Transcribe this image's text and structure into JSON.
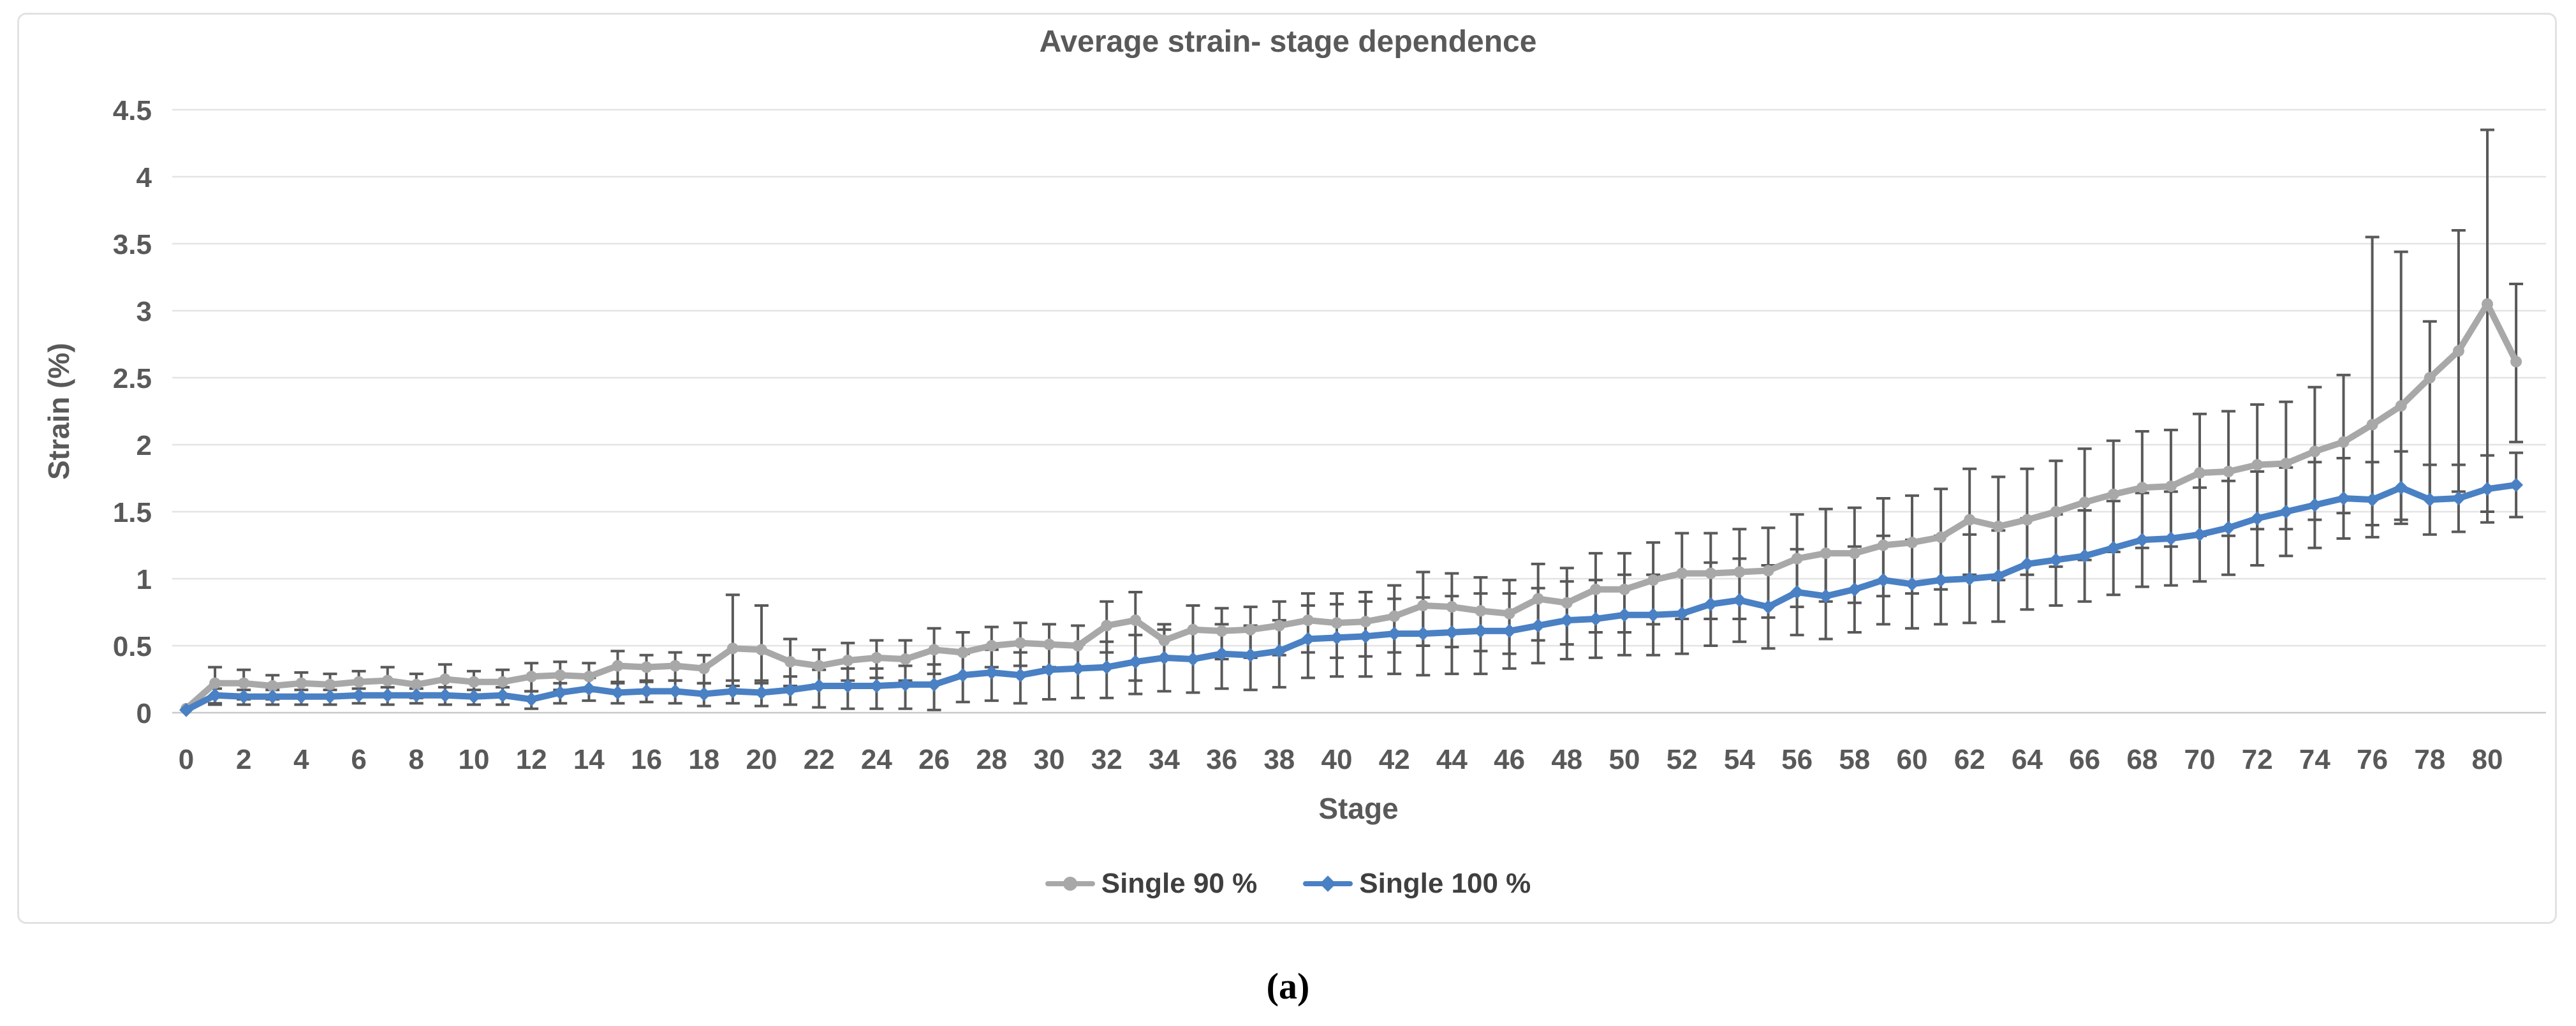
{
  "page": {
    "background": "#ffffff"
  },
  "frame": {
    "border_color": "#e2e2e2"
  },
  "caption": "(a)",
  "styles": {
    "text_color": "#595959",
    "legend_text_color": "#3f3f3f",
    "grid_color": "#e4e4e4",
    "axis_line_color": "#c9c9c9",
    "error_bar_color": "#595959"
  },
  "chart_data": {
    "type": "line",
    "title": "Average strain- stage dependence",
    "xlabel": "Stage",
    "ylabel": "Strain (%)",
    "ylim": [
      0,
      4.5
    ],
    "grid": "horizontal",
    "legend_position": "bottom",
    "yticks": [
      0,
      0.5,
      1,
      1.5,
      2,
      2.5,
      3,
      3.5,
      4,
      4.5
    ],
    "ytick_labels": [
      "0",
      "0.5",
      "1",
      "1.5",
      "2",
      "2.5",
      "3",
      "3.5",
      "4",
      "4.5"
    ],
    "xticks": [
      0,
      2,
      4,
      6,
      8,
      10,
      12,
      14,
      16,
      18,
      20,
      22,
      24,
      26,
      28,
      30,
      32,
      34,
      36,
      38,
      40,
      42,
      44,
      46,
      48,
      50,
      52,
      54,
      56,
      58,
      60,
      62,
      64,
      66,
      68,
      70,
      72,
      74,
      76,
      78,
      80
    ],
    "x": [
      0,
      1,
      2,
      3,
      4,
      5,
      6,
      7,
      8,
      9,
      10,
      11,
      12,
      13,
      14,
      15,
      16,
      17,
      18,
      19,
      20,
      21,
      22,
      23,
      24,
      25,
      26,
      27,
      28,
      29,
      30,
      31,
      32,
      33,
      34,
      35,
      36,
      37,
      38,
      39,
      40,
      41,
      42,
      43,
      44,
      45,
      46,
      47,
      48,
      49,
      50,
      51,
      52,
      53,
      54,
      55,
      56,
      57,
      58,
      59,
      60,
      61,
      62,
      63,
      64,
      65,
      66,
      67,
      68,
      69,
      70,
      71,
      72,
      73,
      74,
      75,
      76,
      77,
      78,
      79,
      80,
      81
    ],
    "error_bar_color": "#595959",
    "series": [
      {
        "name": "Single 90 %",
        "color": "#a8a8a8",
        "marker": "circle",
        "values": [
          0.03,
          0.22,
          0.22,
          0.2,
          0.22,
          0.21,
          0.23,
          0.24,
          0.21,
          0.25,
          0.23,
          0.23,
          0.27,
          0.28,
          0.27,
          0.35,
          0.34,
          0.35,
          0.33,
          0.48,
          0.47,
          0.38,
          0.35,
          0.39,
          0.41,
          0.4,
          0.47,
          0.45,
          0.5,
          0.52,
          0.51,
          0.5,
          0.65,
          0.69,
          0.54,
          0.62,
          0.61,
          0.62,
          0.65,
          0.69,
          0.67,
          0.68,
          0.72,
          0.8,
          0.79,
          0.76,
          0.74,
          0.85,
          0.82,
          0.92,
          0.92,
          0.99,
          1.04,
          1.04,
          1.05,
          1.06,
          1.15,
          1.19,
          1.19,
          1.25,
          1.27,
          1.31,
          1.44,
          1.39,
          1.44,
          1.5,
          1.57,
          1.63,
          1.68,
          1.69,
          1.79,
          1.8,
          1.85,
          1.86,
          1.95,
          2.02,
          2.15,
          2.29,
          2.5,
          2.7,
          3.05,
          2.62
        ],
        "err_plus": [
          0.02,
          0.12,
          0.1,
          0.08,
          0.08,
          0.08,
          0.08,
          0.1,
          0.08,
          0.11,
          0.08,
          0.09,
          0.1,
          0.1,
          0.1,
          0.11,
          0.09,
          0.1,
          0.1,
          0.4,
          0.33,
          0.17,
          0.12,
          0.13,
          0.13,
          0.14,
          0.16,
          0.15,
          0.14,
          0.15,
          0.15,
          0.15,
          0.18,
          0.21,
          0.12,
          0.18,
          0.17,
          0.17,
          0.18,
          0.2,
          0.22,
          0.22,
          0.23,
          0.25,
          0.25,
          0.25,
          0.25,
          0.26,
          0.26,
          0.27,
          0.27,
          0.28,
          0.3,
          0.3,
          0.32,
          0.32,
          0.33,
          0.33,
          0.34,
          0.35,
          0.35,
          0.36,
          0.38,
          0.37,
          0.38,
          0.38,
          0.4,
          0.4,
          0.42,
          0.42,
          0.44,
          0.45,
          0.45,
          0.46,
          0.48,
          0.5,
          1.4,
          1.15,
          0.42,
          0.9,
          1.3,
          0.58
        ],
        "err_minus": [
          0.02,
          0.16,
          0.12,
          0.1,
          0.1,
          0.1,
          0.1,
          0.11,
          0.1,
          0.12,
          0.1,
          0.1,
          0.11,
          0.11,
          0.11,
          0.12,
          0.1,
          0.11,
          0.11,
          0.28,
          0.25,
          0.18,
          0.14,
          0.15,
          0.15,
          0.16,
          0.18,
          0.17,
          0.16,
          0.17,
          0.17,
          0.17,
          0.2,
          0.45,
          0.14,
          0.22,
          0.21,
          0.21,
          0.22,
          0.24,
          0.26,
          0.26,
          0.27,
          0.3,
          0.3,
          0.3,
          0.3,
          0.31,
          0.31,
          0.32,
          0.32,
          0.33,
          0.34,
          0.34,
          0.35,
          0.35,
          0.36,
          0.36,
          0.37,
          0.38,
          0.38,
          0.39,
          0.41,
          0.4,
          0.41,
          0.41,
          0.43,
          0.43,
          0.45,
          0.45,
          0.47,
          0.48,
          0.48,
          0.49,
          0.51,
          0.53,
          0.75,
          0.85,
          0.9,
          1.05,
          1.55,
          0.6
        ]
      },
      {
        "name": "Single 100 %",
        "color": "#4a80c4",
        "marker": "diamond",
        "values": [
          0.02,
          0.13,
          0.12,
          0.12,
          0.12,
          0.12,
          0.13,
          0.13,
          0.13,
          0.13,
          0.12,
          0.13,
          0.1,
          0.15,
          0.18,
          0.15,
          0.16,
          0.16,
          0.14,
          0.16,
          0.15,
          0.17,
          0.2,
          0.2,
          0.2,
          0.21,
          0.21,
          0.28,
          0.3,
          0.28,
          0.32,
          0.33,
          0.34,
          0.38,
          0.41,
          0.4,
          0.44,
          0.43,
          0.46,
          0.55,
          0.56,
          0.57,
          0.59,
          0.59,
          0.6,
          0.61,
          0.61,
          0.65,
          0.69,
          0.7,
          0.73,
          0.73,
          0.74,
          0.81,
          0.84,
          0.79,
          0.9,
          0.87,
          0.92,
          0.99,
          0.96,
          0.99,
          1.0,
          1.02,
          1.11,
          1.14,
          1.17,
          1.23,
          1.29,
          1.3,
          1.33,
          1.38,
          1.45,
          1.5,
          1.55,
          1.6,
          1.59,
          1.68,
          1.59,
          1.6,
          1.67,
          1.7
        ],
        "err_plus": [
          0.02,
          0.05,
          0.05,
          0.05,
          0.05,
          0.05,
          0.05,
          0.06,
          0.05,
          0.06,
          0.05,
          0.06,
          0.06,
          0.07,
          0.08,
          0.07,
          0.07,
          0.08,
          0.08,
          0.08,
          0.09,
          0.1,
          0.12,
          0.13,
          0.13,
          0.14,
          0.15,
          0.16,
          0.17,
          0.17,
          0.18,
          0.18,
          0.19,
          0.2,
          0.21,
          0.21,
          0.22,
          0.22,
          0.23,
          0.25,
          0.25,
          0.26,
          0.26,
          0.27,
          0.27,
          0.28,
          0.28,
          0.28,
          0.29,
          0.29,
          0.3,
          0.3,
          0.3,
          0.31,
          0.31,
          0.31,
          0.32,
          0.32,
          0.32,
          0.33,
          0.33,
          0.33,
          0.33,
          0.34,
          0.34,
          0.34,
          0.34,
          0.35,
          0.35,
          0.35,
          0.35,
          0.35,
          0.35,
          0.33,
          0.32,
          0.3,
          0.28,
          0.27,
          0.26,
          0.25,
          0.25,
          0.24
        ],
        "err_minus": [
          0.02,
          0.06,
          0.06,
          0.06,
          0.06,
          0.06,
          0.06,
          0.07,
          0.06,
          0.07,
          0.06,
          0.07,
          0.07,
          0.08,
          0.09,
          0.08,
          0.08,
          0.09,
          0.09,
          0.09,
          0.1,
          0.11,
          0.16,
          0.17,
          0.17,
          0.18,
          0.19,
          0.2,
          0.21,
          0.21,
          0.22,
          0.22,
          0.23,
          0.24,
          0.25,
          0.25,
          0.26,
          0.26,
          0.27,
          0.29,
          0.29,
          0.3,
          0.3,
          0.31,
          0.31,
          0.32,
          0.28,
          0.28,
          0.29,
          0.29,
          0.3,
          0.3,
          0.3,
          0.31,
          0.31,
          0.31,
          0.32,
          0.32,
          0.32,
          0.33,
          0.33,
          0.33,
          0.33,
          0.34,
          0.34,
          0.34,
          0.34,
          0.35,
          0.35,
          0.35,
          0.35,
          0.35,
          0.35,
          0.33,
          0.32,
          0.3,
          0.28,
          0.27,
          0.26,
          0.25,
          0.25,
          0.24
        ]
      }
    ]
  }
}
